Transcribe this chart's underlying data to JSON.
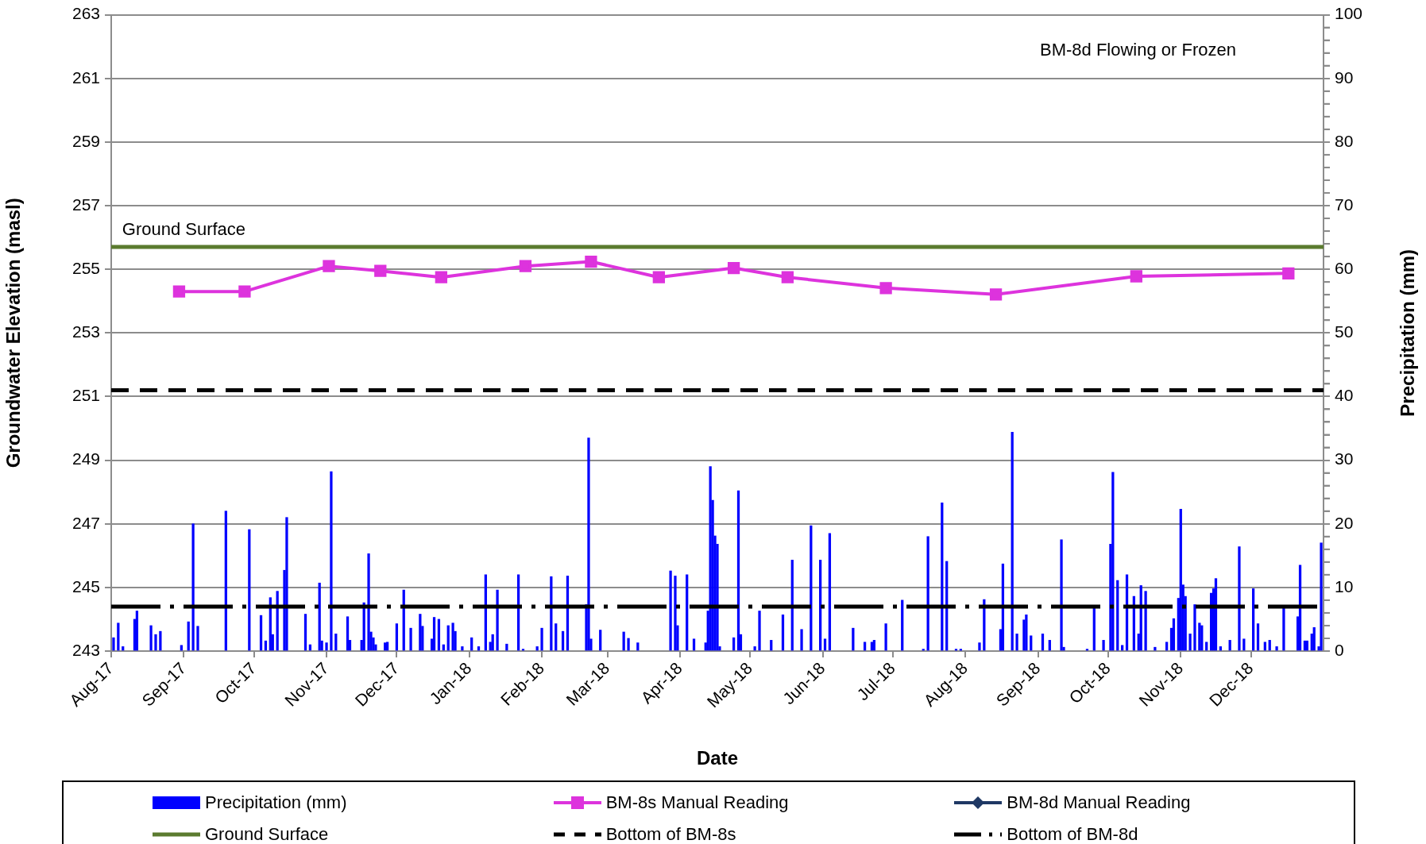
{
  "chart_data": {
    "type": "bar",
    "xlabel": "Date",
    "ylabel": "Groundwater Elevation (masl)",
    "y2label": "Precipitation (mm)",
    "annotations": [
      "BM-8d Flowing or Frozen",
      {
        "text": "Ground Surface",
        "x": "2017-08-05",
        "y": 255.7
      }
    ],
    "xlim": [
      "2017-08-01",
      "2019-01-01"
    ],
    "xticks": [
      {
        "value": "2017-08",
        "label": "Aug-17"
      },
      {
        "value": "2017-09",
        "label": "Sep-17"
      },
      {
        "value": "2017-10",
        "label": "Oct-17"
      },
      {
        "value": "2017-11",
        "label": "Nov-17"
      },
      {
        "value": "2017-12",
        "label": "Dec-17"
      },
      {
        "value": "2018-01",
        "label": "Jan-18"
      },
      {
        "value": "2018-02",
        "label": "Feb-18"
      },
      {
        "value": "2018-03",
        "label": "Mar-18"
      },
      {
        "value": "2018-04",
        "label": "Apr-18"
      },
      {
        "value": "2018-05",
        "label": "May-18"
      },
      {
        "value": "2018-06",
        "label": "Jun-18"
      },
      {
        "value": "2018-07",
        "label": "Jul-18"
      },
      {
        "value": "2018-08",
        "label": "Aug-18"
      },
      {
        "value": "2018-09",
        "label": "Sep-18"
      },
      {
        "value": "2018-10",
        "label": "Oct-18"
      },
      {
        "value": "2018-11",
        "label": "Nov-18"
      },
      {
        "value": "2018-12",
        "label": "Dec-18"
      }
    ],
    "ylim": [
      243,
      263
    ],
    "yticks": [
      243,
      245,
      247,
      249,
      251,
      253,
      255,
      257,
      259,
      261,
      263
    ],
    "y2lim": [
      0,
      100
    ],
    "y2ticks": [
      0,
      {
        "value": 2,
        "label": null
      },
      {
        "value": 4,
        "label": null
      },
      {
        "value": 6,
        "label": null
      },
      {
        "value": 8,
        "label": null
      },
      10,
      {
        "value": 12,
        "label": null
      },
      {
        "value": 14,
        "label": null
      },
      {
        "value": 16,
        "label": null
      },
      {
        "value": 18,
        "label": null
      },
      20,
      {
        "value": 22,
        "label": null
      },
      {
        "value": 24,
        "label": null
      },
      {
        "value": 26,
        "label": null
      },
      {
        "value": 28,
        "label": null
      },
      30,
      {
        "value": 32,
        "label": null
      },
      {
        "value": 34,
        "label": null
      },
      {
        "value": 36,
        "label": null
      },
      {
        "value": 38,
        "label": null
      },
      40,
      {
        "value": 42,
        "label": null
      },
      {
        "value": 44,
        "label": null
      },
      {
        "value": 46,
        "label": null
      },
      {
        "value": 48,
        "label": null
      },
      50,
      {
        "value": 52,
        "label": null
      },
      {
        "value": 54,
        "label": null
      },
      {
        "value": 56,
        "label": null
      },
      {
        "value": 58,
        "label": null
      },
      60,
      {
        "value": 62,
        "label": null
      },
      {
        "value": 64,
        "label": null
      },
      {
        "value": 66,
        "label": null
      },
      {
        "value": 68,
        "label": null
      },
      70,
      {
        "value": 72,
        "label": null
      },
      {
        "value": 74,
        "label": null
      },
      {
        "value": 76,
        "label": null
      },
      {
        "value": 78,
        "label": null
      },
      80,
      {
        "value": 82,
        "label": null
      },
      {
        "value": 84,
        "label": null
      },
      {
        "value": 86,
        "label": null
      },
      {
        "value": 88,
        "label": null
      },
      90,
      {
        "value": 92,
        "label": null
      },
      {
        "value": 94,
        "label": null
      },
      {
        "value": 96,
        "label": null
      },
      {
        "value": 98,
        "label": null
      },
      100
    ],
    "grid": "y",
    "legend": "bottom",
    "series": [
      {
        "name": "Precipitation (mm)",
        "axis": "y2",
        "color": "#0000ff",
        "x": [
          "2017-08-02",
          "2017-08-04",
          "2017-08-06",
          "2017-08-11",
          "2017-08-12",
          "2017-08-18",
          "2017-08-20",
          "2017-08-22",
          "2017-08-31",
          "2017-09-03",
          "2017-09-05",
          "2017-09-07",
          "2017-09-19",
          "2017-09-29",
          "2017-10-04",
          "2017-10-06",
          "2017-10-08",
          "2017-10-09",
          "2017-10-11",
          "2017-10-14",
          "2017-10-15",
          "2017-10-23",
          "2017-10-25",
          "2017-10-29",
          "2017-10-30",
          "2017-11-01",
          "2017-11-03",
          "2017-11-05",
          "2017-11-10",
          "2017-11-11",
          "2017-11-16",
          "2017-11-17",
          "2017-11-19",
          "2017-11-20",
          "2017-11-21",
          "2017-11-22",
          "2017-11-26",
          "2017-11-27",
          "2017-12-01",
          "2017-12-04",
          "2017-12-07",
          "2017-12-11",
          "2017-12-12",
          "2017-12-16",
          "2017-12-17",
          "2017-12-19",
          "2017-12-21",
          "2017-12-23",
          "2017-12-25",
          "2017-12-26",
          "2017-12-29",
          "2018-01-02",
          "2018-01-05",
          "2018-01-08",
          "2018-01-10",
          "2018-01-11",
          "2018-01-13",
          "2018-01-17",
          "2018-01-22",
          "2018-01-24",
          "2018-01-30",
          "2018-02-01",
          "2018-02-05",
          "2018-02-07",
          "2018-02-10",
          "2018-02-12",
          "2018-02-20",
          "2018-02-21",
          "2018-02-22",
          "2018-02-26",
          "2018-03-08",
          "2018-03-10",
          "2018-03-14",
          "2018-03-28",
          "2018-03-30",
          "2018-03-31",
          "2018-04-04",
          "2018-04-07",
          "2018-04-12",
          "2018-04-13",
          "2018-04-14",
          "2018-04-15",
          "2018-04-16",
          "2018-04-17",
          "2018-04-18",
          "2018-04-24",
          "2018-04-26",
          "2018-04-27",
          "2018-05-03",
          "2018-05-05",
          "2018-05-10",
          "2018-05-15",
          "2018-05-19",
          "2018-05-23",
          "2018-05-27",
          "2018-05-31",
          "2018-06-02",
          "2018-06-04",
          "2018-06-14",
          "2018-06-19",
          "2018-06-22",
          "2018-06-23",
          "2018-06-28",
          "2018-07-05",
          "2018-07-14",
          "2018-07-16",
          "2018-07-22",
          "2018-07-24",
          "2018-07-28",
          "2018-07-30",
          "2018-08-07",
          "2018-08-09",
          "2018-08-16",
          "2018-08-17",
          "2018-08-21",
          "2018-08-23",
          "2018-08-26",
          "2018-08-27",
          "2018-08-29",
          "2018-09-03",
          "2018-09-06",
          "2018-09-11",
          "2018-09-12",
          "2018-09-22",
          "2018-09-25",
          "2018-09-29",
          "2018-10-02",
          "2018-10-03",
          "2018-10-05",
          "2018-10-07",
          "2018-10-09",
          "2018-10-12",
          "2018-10-14",
          "2018-10-15",
          "2018-10-17",
          "2018-10-21",
          "2018-10-26",
          "2018-10-28",
          "2018-10-29",
          "2018-10-31",
          "2018-11-01",
          "2018-11-02",
          "2018-11-03",
          "2018-11-05",
          "2018-11-07",
          "2018-11-09",
          "2018-11-10",
          "2018-11-12",
          "2018-11-14",
          "2018-11-15",
          "2018-11-16",
          "2018-11-18",
          "2018-11-22",
          "2018-11-26",
          "2018-11-28",
          "2018-12-02",
          "2018-12-04",
          "2018-12-07",
          "2018-12-09",
          "2018-12-12",
          "2018-12-15",
          "2018-12-21",
          "2018-12-22",
          "2018-12-24",
          "2018-12-25",
          "2018-12-27",
          "2018-12-28",
          "2018-12-30",
          "2018-12-31"
        ],
        "values": [
          2.1,
          4.4,
          0.7,
          5,
          6.3,
          4,
          2.6,
          3.1,
          0.9,
          4.6,
          20,
          3.9,
          22,
          19.1,
          5.6,
          1.6,
          8.4,
          2.6,
          9.4,
          12.7,
          21,
          5.8,
          1,
          10.7,
          1.6,
          1.3,
          28.2,
          2.7,
          5.4,
          1.7,
          1.7,
          7.6,
          15.3,
          3,
          2.1,
          1,
          1.3,
          1.4,
          4.3,
          9.6,
          3.6,
          5.8,
          3.9,
          1.9,
          5.3,
          5,
          1,
          4,
          4.4,
          3.1,
          0.7,
          2.1,
          0.7,
          12,
          1.4,
          2.6,
          9.6,
          1.1,
          12,
          0.3,
          0.7,
          3.6,
          11.7,
          4.3,
          3.1,
          11.8,
          7.3,
          33.5,
          1.9,
          3.3,
          3,
          2,
          1.3,
          12.6,
          11.8,
          4,
          12,
          1.9,
          1.3,
          6.3,
          29,
          23.7,
          18.1,
          16.8,
          0.7,
          2.1,
          25.2,
          2.6,
          0.7,
          6.3,
          1.7,
          5.7,
          14.3,
          3.4,
          19.7,
          14.3,
          1.9,
          18.5,
          3.6,
          1.4,
          1.4,
          1.7,
          4.3,
          8,
          0.3,
          18,
          23.3,
          14.1,
          0.3,
          0.3,
          1.3,
          8.1,
          3.4,
          13.7,
          34.4,
          2.7,
          4.9,
          5.7,
          2.4,
          2.7,
          1.7,
          17.5,
          0.6,
          0.3,
          6.8,
          1.7,
          16.8,
          28.1,
          11.1,
          0.9,
          12,
          8.6,
          2.7,
          10.3,
          9.4,
          0.6,
          1.4,
          3.6,
          5.1,
          8.3,
          22.3,
          10.4,
          8.6,
          2.7,
          7.3,
          4.4,
          4,
          1.4,
          9.1,
          9.8,
          11.4,
          0.7,
          1.7,
          16.4,
          1.9,
          9.8,
          4.3,
          1.4,
          1.7,
          0.7,
          6.7,
          5.4,
          13.5,
          1.6,
          1.6,
          2.7,
          3.7,
          0.7,
          17
        ]
      },
      {
        "name": "BM-8s Manual Reading",
        "type": "line",
        "marker": "square",
        "color": "#dd33dd",
        "x": [
          "2017-08-30",
          "2017-09-27",
          "2017-11-02",
          "2017-11-24",
          "2017-12-20",
          "2018-01-25",
          "2018-02-22",
          "2018-03-23",
          "2018-04-24",
          "2018-05-17",
          "2018-06-28",
          "2018-08-14",
          "2018-10-13",
          "2018-12-17"
        ],
        "values": [
          254.3,
          254.3,
          255.1,
          254.95,
          254.75,
          255.1,
          255.24,
          254.75,
          255.04,
          254.75,
          254.41,
          254.21,
          254.78,
          254.87
        ]
      },
      {
        "name": "BM-8d Manual Reading",
        "type": "line",
        "marker": "diamond",
        "color": "#1f3864"
      }
    ],
    "ref_lines": [
      {
        "axis": "y",
        "value": 255.7,
        "label": "Ground Surface",
        "color": "#5b7b2f",
        "line_style": "solid"
      },
      {
        "axis": "y",
        "value": 251.2,
        "label": "Bottom of BM-8s",
        "color": "#000000",
        "line_style": "dashed"
      },
      {
        "axis": "y",
        "value": 244.4,
        "label": "Bottom of BM-8d",
        "color": "#000000",
        "line_style": "dashdot"
      }
    ]
  }
}
